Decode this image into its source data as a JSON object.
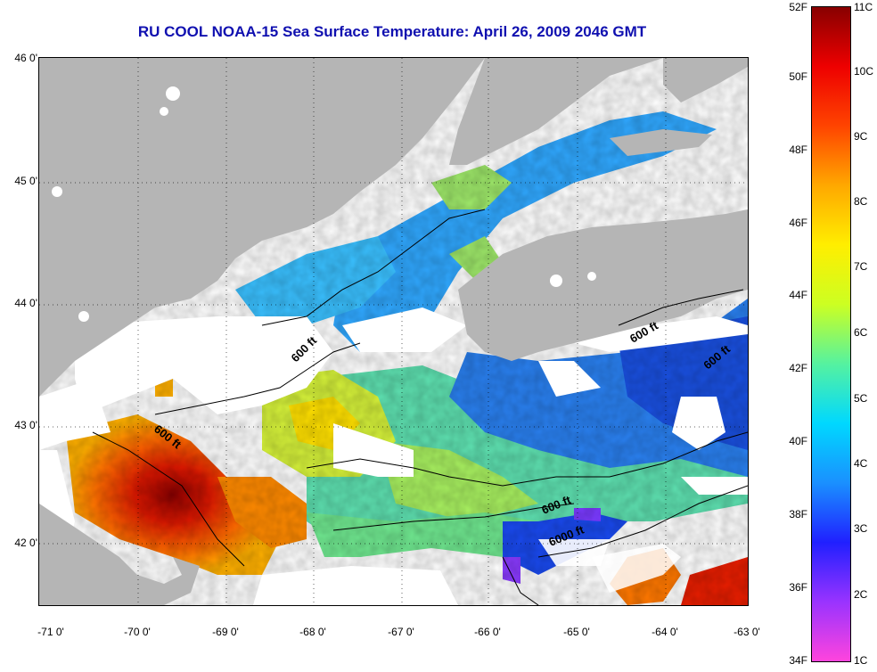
{
  "title": "RU COOL  NOAA-15  Sea Surface Temperature:  April 26, 2009 2046 GMT",
  "lat_labels": [
    "46 0'",
    "45 0'",
    "44 0'",
    "43 0'",
    "42 0'"
  ],
  "lon_labels": [
    "-71 0'",
    "-70 0'",
    "-69 0'",
    "-68 0'",
    "-67 0'",
    "-66 0'",
    "-65 0'",
    "-64 0'",
    "-63 0'"
  ],
  "contour_labels": [
    "600 ft",
    "600 ft",
    "600 ft",
    "600 ft",
    "600 ft",
    "6000 ft"
  ],
  "colorbar": {
    "f_labels": [
      "52F",
      "50F",
      "48F",
      "46F",
      "44F",
      "42F",
      "40F",
      "38F",
      "36F",
      "34F"
    ],
    "c_labels": [
      "11C",
      "10C",
      "9C",
      "8C",
      "7C",
      "6C",
      "5C",
      "4C",
      "3C",
      "2C",
      "1C"
    ]
  },
  "colors": {
    "land": "#b5b5b5",
    "cloud": "#ffffff",
    "title": "#1010b0",
    "scale": [
      "#ff44dd",
      "#9933ff",
      "#2020ff",
      "#1a90ff",
      "#00d8ff",
      "#55f2a0",
      "#ccff22",
      "#ffee00",
      "#ffa800",
      "#ff4400",
      "#ee0000",
      "#880000"
    ]
  }
}
